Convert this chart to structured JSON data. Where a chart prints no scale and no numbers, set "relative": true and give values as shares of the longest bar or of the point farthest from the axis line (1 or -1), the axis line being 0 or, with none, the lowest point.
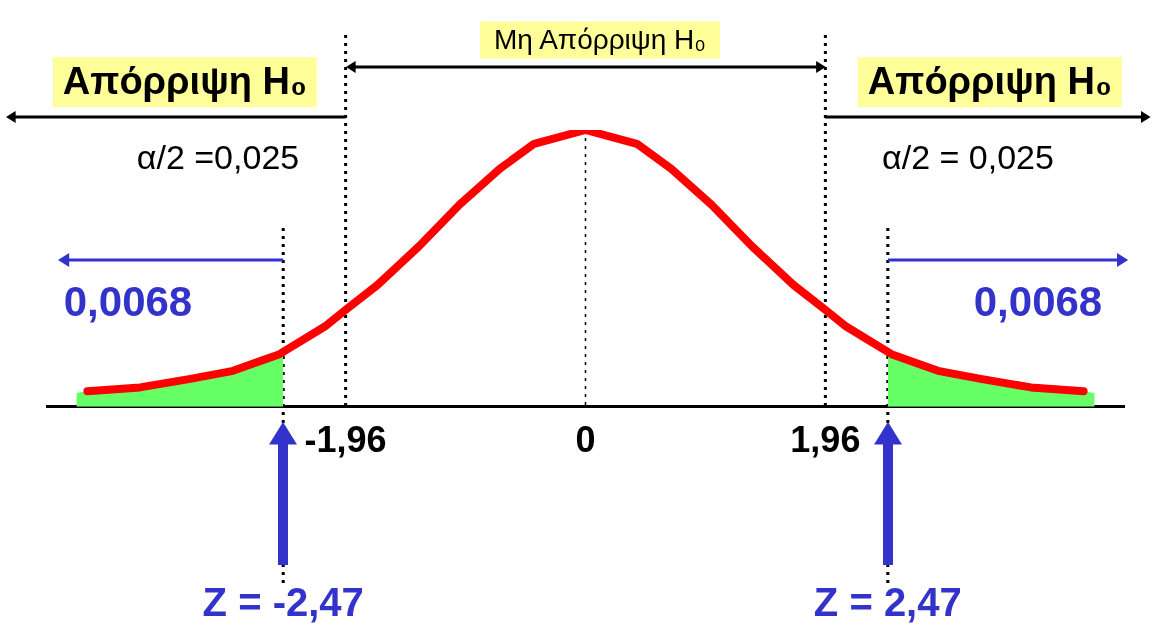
{
  "chart_data": {
    "type": "line",
    "relative": true,
    "x": [
      -4.07,
      -3.64,
      -3.24,
      -2.88,
      -2.5,
      -2.13,
      -1.96,
      -1.7,
      -1.36,
      -1.03,
      -0.7,
      -0.42,
      0,
      0.42,
      0.7,
      1.03,
      1.36,
      1.7,
      1.96,
      2.13,
      2.5,
      2.88,
      3.24,
      3.64,
      4.07
    ],
    "series": [
      {
        "type": "area",
        "color": "#66ff66",
        "x": [
          -4.16,
          -4.07,
          -3.64,
          -3.24,
          -2.88,
          -2.5,
          -2.47
        ],
        "values": [
          0.05,
          0.056,
          0.07,
          0.1,
          0.13,
          0.19,
          0.19
        ]
      },
      {
        "type": "area",
        "color": "#66ff66",
        "x": [
          2.47,
          2.5,
          2.88,
          3.24,
          3.64,
          4.07,
          4.16
        ],
        "values": [
          0.19,
          0.19,
          0.13,
          0.1,
          0.07,
          0.056,
          0.05
        ]
      },
      {
        "color": "#ff0000",
        "values": [
          0.056,
          0.07,
          0.1,
          0.13,
          0.19,
          0.29,
          0.35,
          0.44,
          0.58,
          0.73,
          0.86,
          0.95,
          1,
          0.95,
          0.86,
          0.73,
          0.58,
          0.44,
          0.35,
          0.29,
          0.19,
          0.13,
          0.1,
          0.07,
          0.056
        ]
      }
    ],
    "xlim": [
      -4.4,
      4.4
    ],
    "xticks": [
      {
        "value": -1.96,
        "label": "-1,96"
      },
      0,
      {
        "value": 1.96,
        "label": "1,96"
      }
    ],
    "marker": "none",
    "line_style": "solid",
    "legend": false,
    "ref_lines": [
      {
        "axis": "x",
        "value": -1.96,
        "color": "#000000",
        "line_style": "dotted"
      },
      {
        "axis": "x",
        "value": 0,
        "color": "#000000",
        "line_style": "dotted"
      },
      {
        "axis": "x",
        "value": 1.96,
        "color": "#000000",
        "line_style": "dotted"
      },
      {
        "axis": "x",
        "value": -2.47,
        "label": "Z = -2,47",
        "color": "#000000",
        "line_style": "dotted"
      },
      {
        "axis": "x",
        "value": 2.47,
        "label": "Z = 2,47",
        "color": "#000000",
        "line_style": "dotted"
      }
    ],
    "annotations": [
      "Απόρριψη H₀",
      "Μη Απόρριψη H₀",
      "Απόρριψη H₀",
      "α/2 =0,025",
      "α/2 = 0,025",
      "0,0068",
      "0,0068"
    ]
  }
}
